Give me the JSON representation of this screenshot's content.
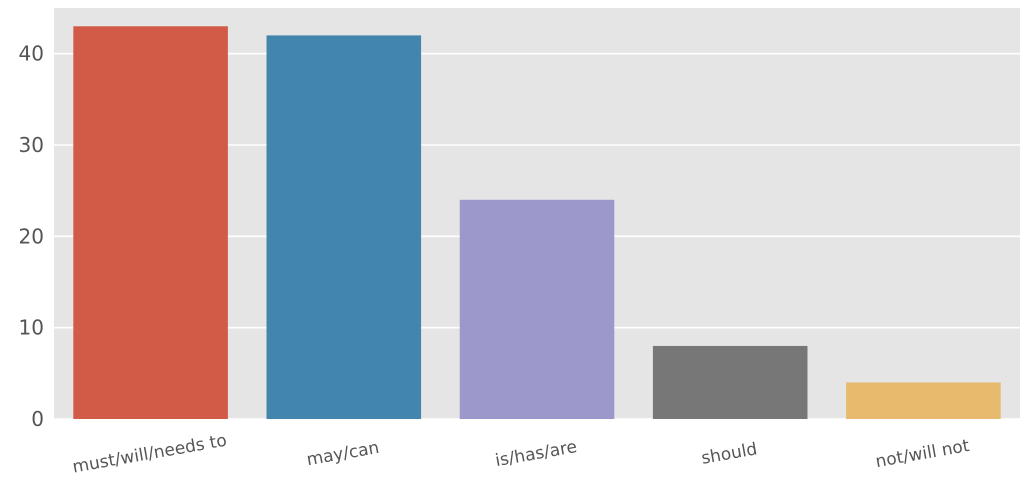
{
  "chart_data": {
    "type": "bar",
    "categories": [
      "must/will/needs to",
      "may/can",
      "is/has/are",
      "should",
      "not/will not"
    ],
    "values": [
      43,
      42,
      24,
      8,
      4
    ],
    "colors": [
      "#d15b47",
      "#4286ae",
      "#9d98cb",
      "#777777",
      "#e8ba6e"
    ],
    "title": "",
    "xlabel": "",
    "ylabel": "",
    "ylim": [
      0,
      45
    ],
    "yticks": [
      0,
      10,
      20,
      30,
      40
    ],
    "grid": true,
    "background": "#e5e5e5",
    "legend": "none"
  }
}
